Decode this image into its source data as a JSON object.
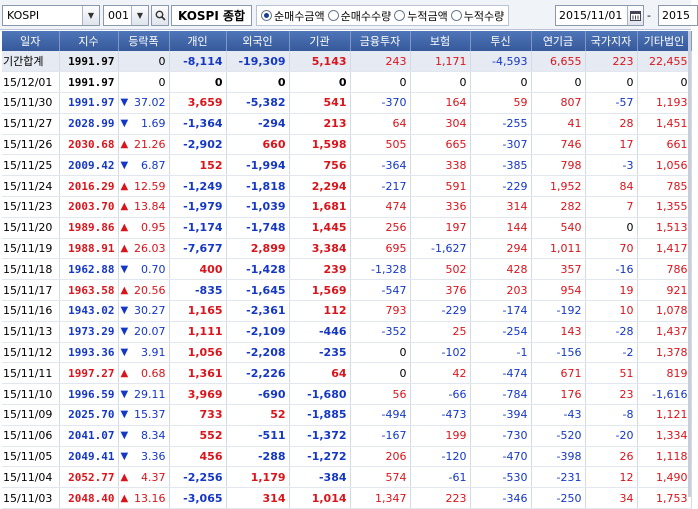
{
  "toolbar": {
    "market": "KOSPI",
    "code": "001",
    "index_name": "KOSPI 종합",
    "radios": [
      {
        "label": "순매수금액",
        "selected": true
      },
      {
        "label": "순매수수량",
        "selected": false
      },
      {
        "label": "누적금액",
        "selected": false
      },
      {
        "label": "누적수량",
        "selected": false
      }
    ],
    "date_from": "2015/11/01",
    "date_sep": "-",
    "date_to": "2015"
  },
  "table": {
    "headers": [
      "일자",
      "지수",
      "등락폭",
      "개인",
      "외국인",
      "기관",
      "금융투자",
      "보험",
      "투신",
      "연기금",
      "국가지자",
      "기타법인"
    ],
    "summary": {
      "date": "기간합계",
      "index": "1991.97",
      "change": "0",
      "dir": "",
      "values": [
        "-8,114",
        "-19,309",
        "5,143",
        "243",
        "1,171",
        "-4,593",
        "6,655",
        "223",
        "22,455"
      ]
    },
    "rows": [
      {
        "date": "15/12/01",
        "index": "1991.97",
        "change": "0",
        "dir": "",
        "values": [
          "0",
          "0",
          "0",
          "0",
          "0",
          "0",
          "0",
          "0",
          "0"
        ]
      },
      {
        "date": "15/11/30",
        "index": "1991.97",
        "change": "37.02",
        "dir": "down",
        "values": [
          "3,659",
          "-5,382",
          "541",
          "-370",
          "164",
          "59",
          "807",
          "-57",
          "1,193"
        ]
      },
      {
        "date": "15/11/27",
        "index": "2028.99",
        "change": "1.69",
        "dir": "down",
        "values": [
          "-1,364",
          "-294",
          "213",
          "64",
          "304",
          "-255",
          "41",
          "28",
          "1,451"
        ]
      },
      {
        "date": "15/11/26",
        "index": "2030.68",
        "change": "21.26",
        "dir": "up",
        "values": [
          "-2,902",
          "660",
          "1,598",
          "505",
          "665",
          "-307",
          "746",
          "17",
          "661"
        ]
      },
      {
        "date": "15/11/25",
        "index": "2009.42",
        "change": "6.87",
        "dir": "down",
        "values": [
          "152",
          "-1,994",
          "756",
          "-364",
          "338",
          "-385",
          "798",
          "-3",
          "1,056"
        ]
      },
      {
        "date": "15/11/24",
        "index": "2016.29",
        "change": "12.59",
        "dir": "up",
        "values": [
          "-1,249",
          "-1,818",
          "2,294",
          "-217",
          "591",
          "-229",
          "1,952",
          "84",
          "785"
        ]
      },
      {
        "date": "15/11/23",
        "index": "2003.70",
        "change": "13.84",
        "dir": "up",
        "values": [
          "-1,979",
          "-1,039",
          "1,681",
          "474",
          "336",
          "314",
          "282",
          "7",
          "1,355"
        ]
      },
      {
        "date": "15/11/20",
        "index": "1989.86",
        "change": "0.95",
        "dir": "up",
        "values": [
          "-1,174",
          "-1,748",
          "1,445",
          "256",
          "197",
          "144",
          "540",
          "0",
          "1,513"
        ]
      },
      {
        "date": "15/11/19",
        "index": "1988.91",
        "change": "26.03",
        "dir": "up",
        "values": [
          "-7,677",
          "2,899",
          "3,384",
          "695",
          "-1,627",
          "294",
          "1,011",
          "70",
          "1,417"
        ]
      },
      {
        "date": "15/11/18",
        "index": "1962.88",
        "change": "0.70",
        "dir": "down",
        "values": [
          "400",
          "-1,428",
          "239",
          "-1,328",
          "502",
          "428",
          "357",
          "-16",
          "786"
        ]
      },
      {
        "date": "15/11/17",
        "index": "1963.58",
        "change": "20.56",
        "dir": "up",
        "values": [
          "-835",
          "-1,645",
          "1,569",
          "-547",
          "376",
          "203",
          "954",
          "19",
          "921"
        ]
      },
      {
        "date": "15/11/16",
        "index": "1943.02",
        "change": "30.27",
        "dir": "down",
        "values": [
          "1,165",
          "-2,361",
          "112",
          "793",
          "-229",
          "-174",
          "-192",
          "10",
          "1,078"
        ]
      },
      {
        "date": "15/11/13",
        "index": "1973.29",
        "change": "20.07",
        "dir": "down",
        "values": [
          "1,111",
          "-2,109",
          "-446",
          "-352",
          "25",
          "-254",
          "143",
          "-28",
          "1,437"
        ]
      },
      {
        "date": "15/11/12",
        "index": "1993.36",
        "change": "3.91",
        "dir": "down",
        "values": [
          "1,056",
          "-2,208",
          "-235",
          "0",
          "-102",
          "-1",
          "-156",
          "-2",
          "1,378"
        ]
      },
      {
        "date": "15/11/11",
        "index": "1997.27",
        "change": "0.68",
        "dir": "up",
        "values": [
          "1,361",
          "-2,226",
          "64",
          "0",
          "42",
          "-474",
          "671",
          "51",
          "819"
        ]
      },
      {
        "date": "15/11/10",
        "index": "1996.59",
        "change": "29.11",
        "dir": "down",
        "values": [
          "3,969",
          "-690",
          "-1,680",
          "56",
          "-66",
          "-784",
          "176",
          "23",
          "-1,616"
        ]
      },
      {
        "date": "15/11/09",
        "index": "2025.70",
        "change": "15.37",
        "dir": "down",
        "values": [
          "733",
          "52",
          "-1,885",
          "-494",
          "-473",
          "-394",
          "-43",
          "-8",
          "1,121"
        ]
      },
      {
        "date": "15/11/06",
        "index": "2041.07",
        "change": "8.34",
        "dir": "down",
        "values": [
          "552",
          "-511",
          "-1,372",
          "-167",
          "199",
          "-730",
          "-520",
          "-20",
          "1,334"
        ]
      },
      {
        "date": "15/11/05",
        "index": "2049.41",
        "change": "3.36",
        "dir": "down",
        "values": [
          "456",
          "-288",
          "-1,272",
          "206",
          "-120",
          "-470",
          "-398",
          "26",
          "1,118"
        ]
      },
      {
        "date": "15/11/04",
        "index": "2052.77",
        "change": "4.37",
        "dir": "up",
        "values": [
          "-2,256",
          "1,179",
          "-384",
          "574",
          "-61",
          "-530",
          "-231",
          "12",
          "1,490"
        ]
      },
      {
        "date": "15/11/03",
        "index": "2048.40",
        "change": "13.16",
        "dir": "up",
        "values": [
          "-3,065",
          "314",
          "1,014",
          "1,347",
          "223",
          "-346",
          "-250",
          "34",
          "1,753"
        ]
      }
    ]
  },
  "colors": {
    "up": "#d9141b",
    "down": "#1437c4",
    "header": "#3e63a6"
  }
}
